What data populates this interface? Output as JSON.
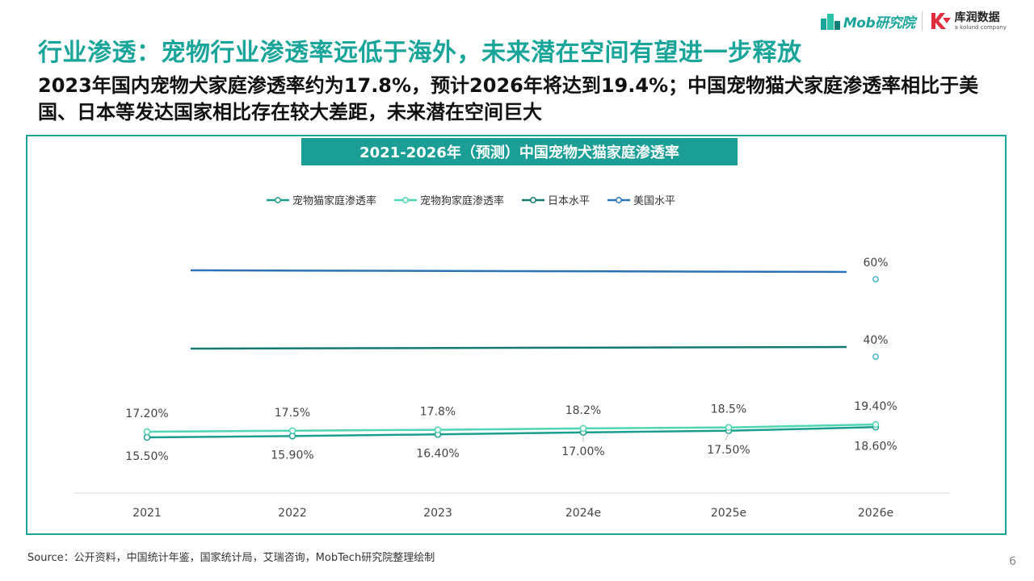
{
  "header": {
    "mob_logo_text": "Mob研究院",
    "kuai_logo_name": "库润数据",
    "kuai_logo_sub": "a kolund company"
  },
  "title": "行业渗透：宠物行业渗透率远低于海外，未来潜在空间有望进一步释放",
  "subtitle": "2023年国内宠物犬家庭渗透率约为17.8%，预计2026年将达到19.4%；中国宠物猫犬家庭渗透率相比于美国、日本等发达国家相比存在较大差距，未来潜在空间巨大",
  "source": "Source：公开资料，中国统计年鉴，国家统计局，艾瑞咨询，MobTech研究院整理绘制",
  "page_number": "6",
  "colors": {
    "accent": "#1aa59a",
    "header_bg": "#1a9e96",
    "cat": "#1a9e8e",
    "dog": "#4fd6b2",
    "japan": "#137a73",
    "usa": "#2b72b8"
  },
  "chart_data": {
    "type": "line",
    "title": "2021-2026年（预测）中国宠物犬猫家庭渗透率",
    "categories": [
      "2021",
      "2022",
      "2023",
      "2024e",
      "2025e",
      "2026e"
    ],
    "series": [
      {
        "name": "宠物猫家庭渗透率",
        "values": [
          15.5,
          15.9,
          16.4,
          17.0,
          17.5,
          18.6
        ],
        "labels": [
          "15.50%",
          "15.90%",
          "16.40%",
          "17.00%",
          "17.50%",
          "18.60%"
        ]
      },
      {
        "name": "宠物狗家庭渗透率",
        "values": [
          17.2,
          17.5,
          17.8,
          18.2,
          18.5,
          19.4
        ],
        "labels": [
          "17.20%",
          "17.5%",
          "17.8%",
          "18.2%",
          "18.5%",
          "19.40%"
        ]
      },
      {
        "name": "日本水平",
        "values": [
          40,
          40,
          40,
          40,
          40,
          40
        ],
        "labels": [
          "40%"
        ]
      },
      {
        "name": "美国水平",
        "values": [
          60,
          60,
          60,
          60,
          60,
          60
        ],
        "labels": [
          "60%"
        ]
      }
    ],
    "legend_position": "top-center",
    "grid": false
  }
}
